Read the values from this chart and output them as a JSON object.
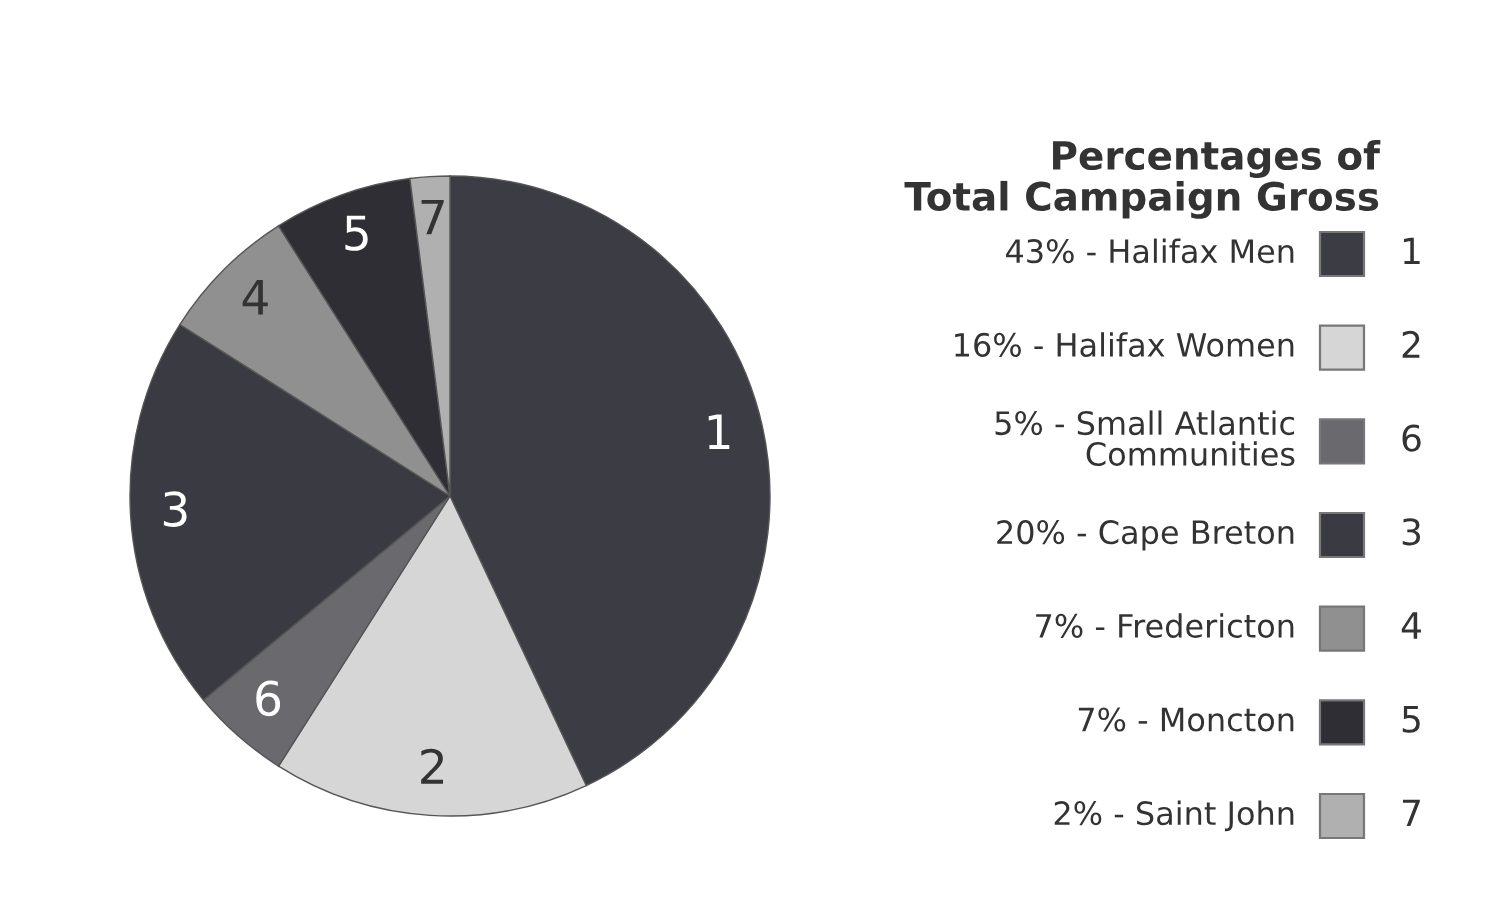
{
  "chart_data": {
    "type": "pie",
    "title": "Percentages of\nTotal Campaign Gross",
    "categories": [
      "1",
      "2",
      "6",
      "3",
      "4",
      "5",
      "7"
    ],
    "values": [
      43,
      16,
      5,
      20,
      7,
      7,
      2
    ],
    "value_labels": [
      "43% - Halifax Men",
      "16% - Halifax Women",
      "5% - Small Atlantic\nCommunities",
      "20% - Cape Breton",
      "7% - Fredericton",
      "7% - Moncton",
      "2% - Saint John"
    ],
    "colors": [
      "#3c3c44",
      "#d6d6d6",
      "#6a6a6e",
      "#3a3a42",
      "#909090",
      "#2e2e34",
      "#b0b0b0"
    ],
    "legend": "right"
  }
}
